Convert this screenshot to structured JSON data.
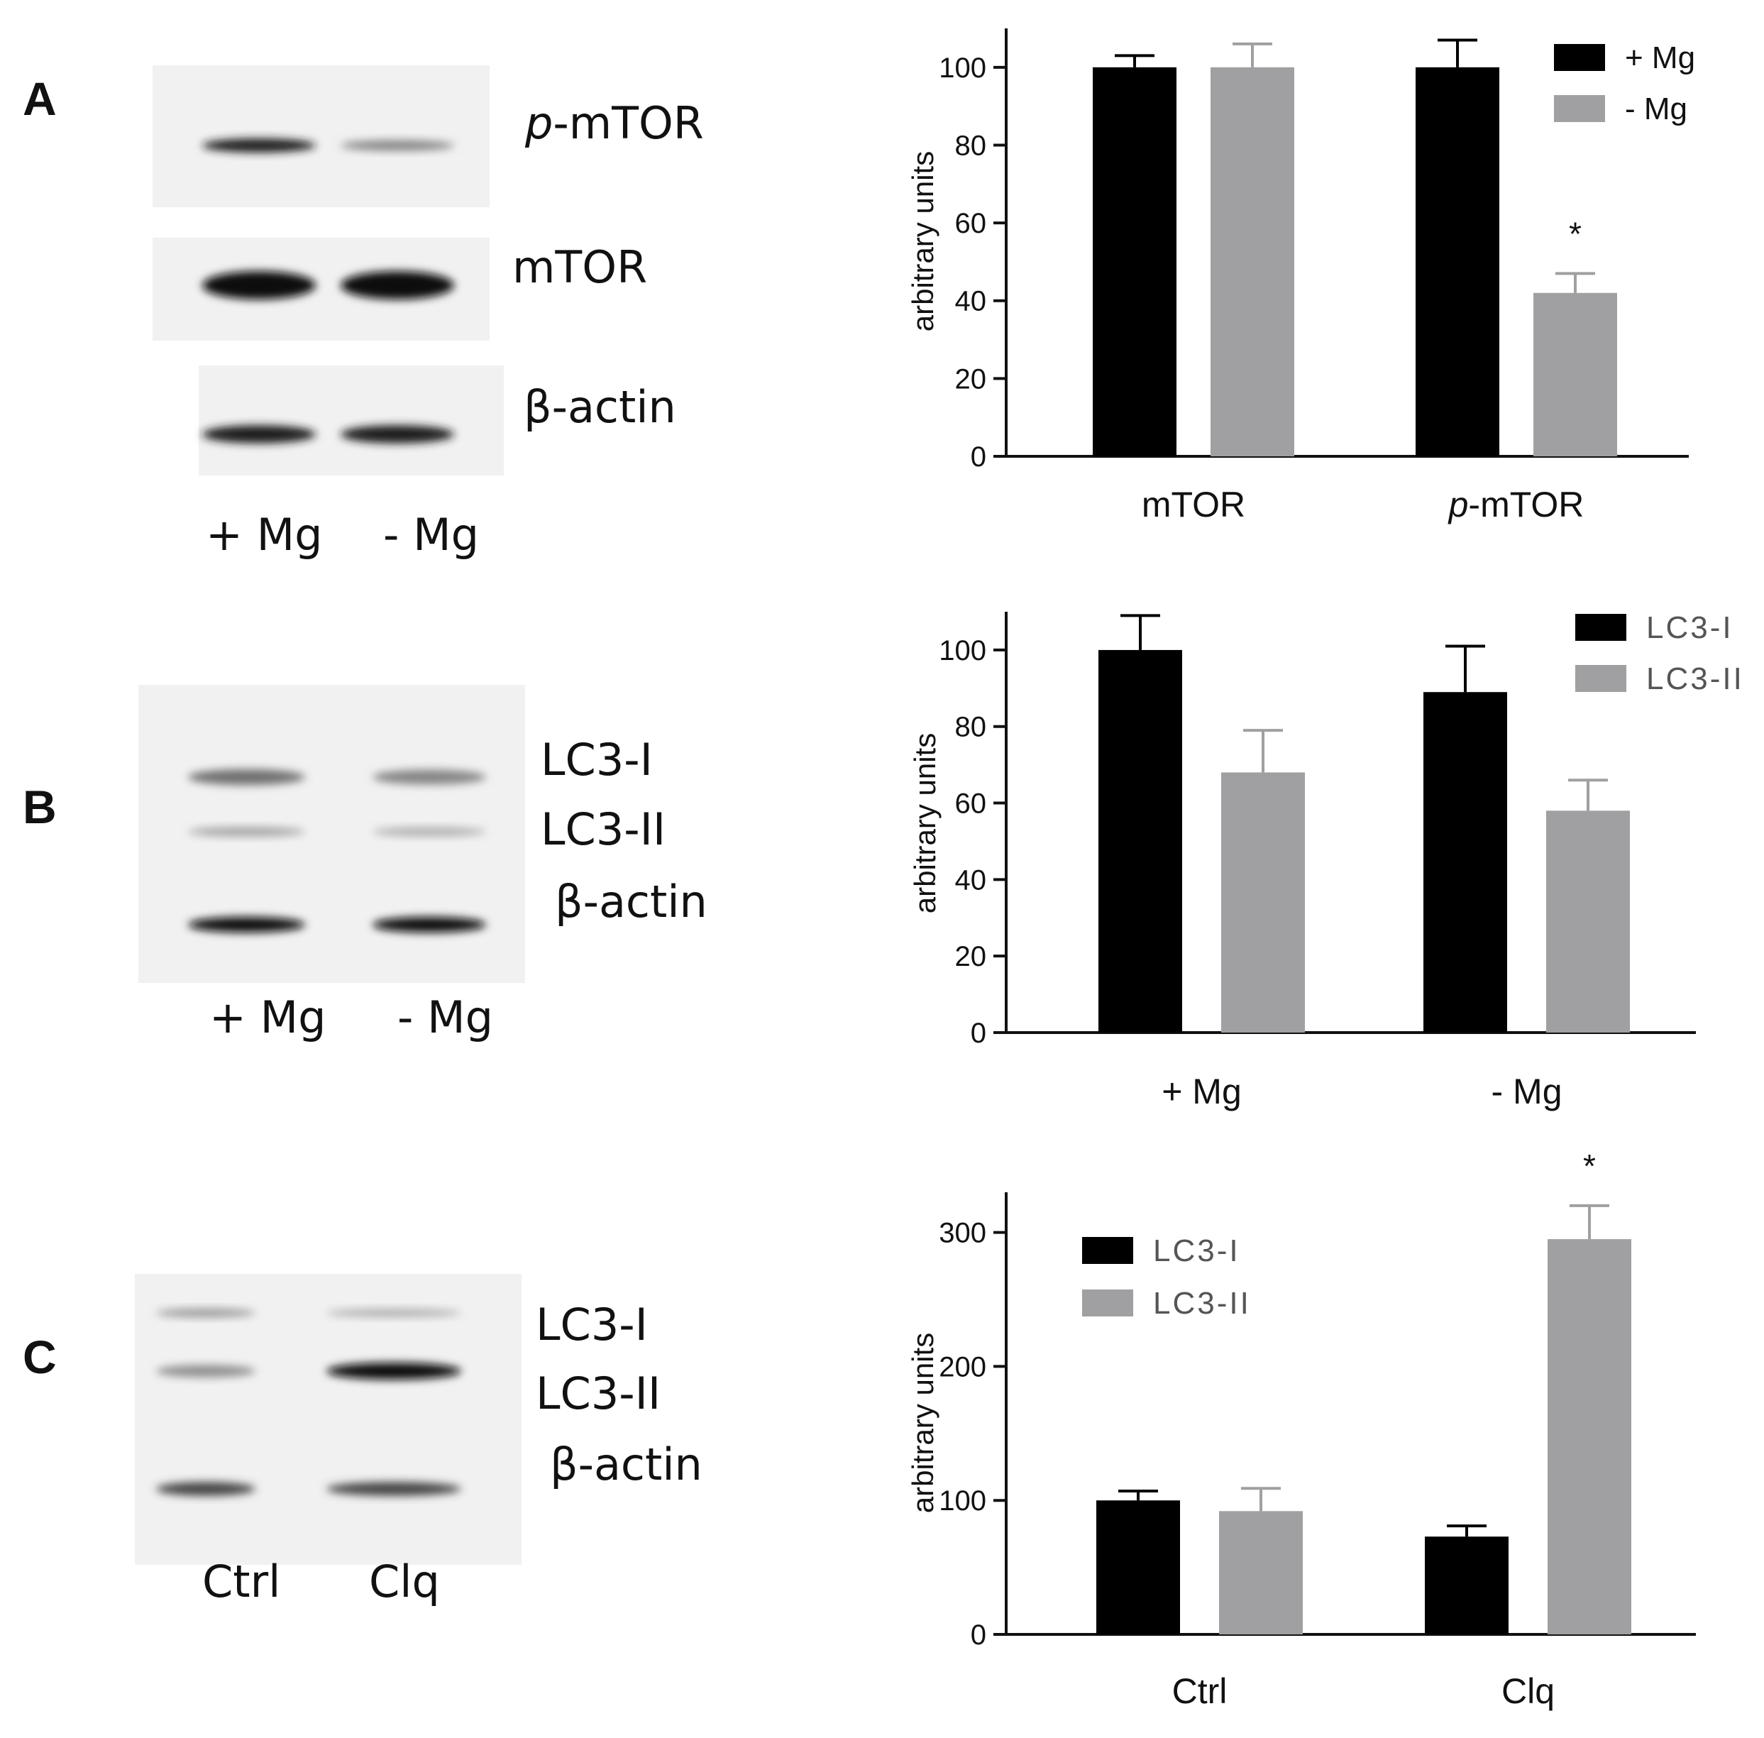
{
  "blots": [
    {
      "letter": "A",
      "bands": [
        {
          "label": "p-mTOR",
          "italic_prefix": "p",
          "rest": "-mTOR",
          "lane_intensity": [
            0.95,
            0.45
          ]
        },
        {
          "label": "mTOR",
          "lane_intensity": [
            1.0,
            1.0
          ]
        },
        {
          "label": "β-actin",
          "lane_intensity": [
            0.95,
            0.95
          ]
        }
      ],
      "lanes": [
        "+ Mg",
        "- Mg"
      ]
    },
    {
      "letter": "B",
      "bands": [
        {
          "label": "LC3-I",
          "lane_intensity": [
            0.55,
            0.45
          ]
        },
        {
          "label": "LC3-II",
          "lane_intensity": [
            0.3,
            0.25
          ]
        },
        {
          "label": "β-actin",
          "lane_intensity": [
            1.0,
            1.0
          ]
        }
      ],
      "lanes": [
        "+ Mg",
        "- Mg"
      ]
    },
    {
      "letter": "C",
      "bands": [
        {
          "label": "LC3-I",
          "lane_intensity": [
            0.35,
            0.25
          ]
        },
        {
          "label": "LC3-II",
          "lane_intensity": [
            0.4,
            1.0
          ]
        },
        {
          "label": "β-actin",
          "lane_intensity": [
            0.75,
            0.75
          ]
        }
      ],
      "lanes": [
        "Ctrl",
        "Clq"
      ]
    }
  ],
  "chart_data": [
    {
      "type": "bar",
      "ylabel": "arbitrary units",
      "ylim": [
        0,
        110
      ],
      "yticks": [
        0,
        20,
        40,
        60,
        80,
        100
      ],
      "categories": [
        {
          "label": "mTOR"
        },
        {
          "label": "p-mTOR",
          "italic_prefix": "p",
          "rest": "-mTOR"
        }
      ],
      "series": [
        {
          "name": "+ Mg",
          "color": "#000000",
          "values": [
            100,
            100
          ],
          "errors": [
            3,
            7
          ]
        },
        {
          "name": "- Mg",
          "color": "#a0a0a2",
          "values": [
            100,
            42
          ],
          "errors": [
            6,
            5
          ]
        }
      ],
      "significance": [
        {
          "series": 1,
          "category": 1,
          "mark": "*"
        }
      ],
      "legend": "top-right"
    },
    {
      "type": "bar",
      "ylabel": "arbitrary units",
      "ylim": [
        0,
        110
      ],
      "yticks": [
        0,
        20,
        40,
        60,
        80,
        100
      ],
      "categories": [
        {
          "label": "+ Mg"
        },
        {
          "label": "- Mg"
        }
      ],
      "series": [
        {
          "name": "LC3-I",
          "color": "#000000",
          "values": [
            100,
            89
          ],
          "errors": [
            9,
            12
          ]
        },
        {
          "name": "LC3-II",
          "color": "#a0a0a2",
          "values": [
            68,
            58
          ],
          "errors": [
            11,
            8
          ]
        }
      ],
      "significance": [],
      "legend": "top-right"
    },
    {
      "type": "bar",
      "ylabel": "arbitrary units",
      "ylim": [
        0,
        330
      ],
      "yticks": [
        0,
        100,
        200,
        300
      ],
      "categories": [
        {
          "label": "Ctrl"
        },
        {
          "label": "Clq"
        }
      ],
      "series": [
        {
          "name": "LC3-I",
          "color": "#000000",
          "values": [
            100,
            73
          ],
          "errors": [
            7,
            8
          ]
        },
        {
          "name": "LC3-II",
          "color": "#a0a0a2",
          "values": [
            92,
            295
          ],
          "errors": [
            17,
            25
          ]
        }
      ],
      "significance": [
        {
          "series": 1,
          "category": 1,
          "mark": "*"
        }
      ],
      "legend": "top-left"
    }
  ]
}
